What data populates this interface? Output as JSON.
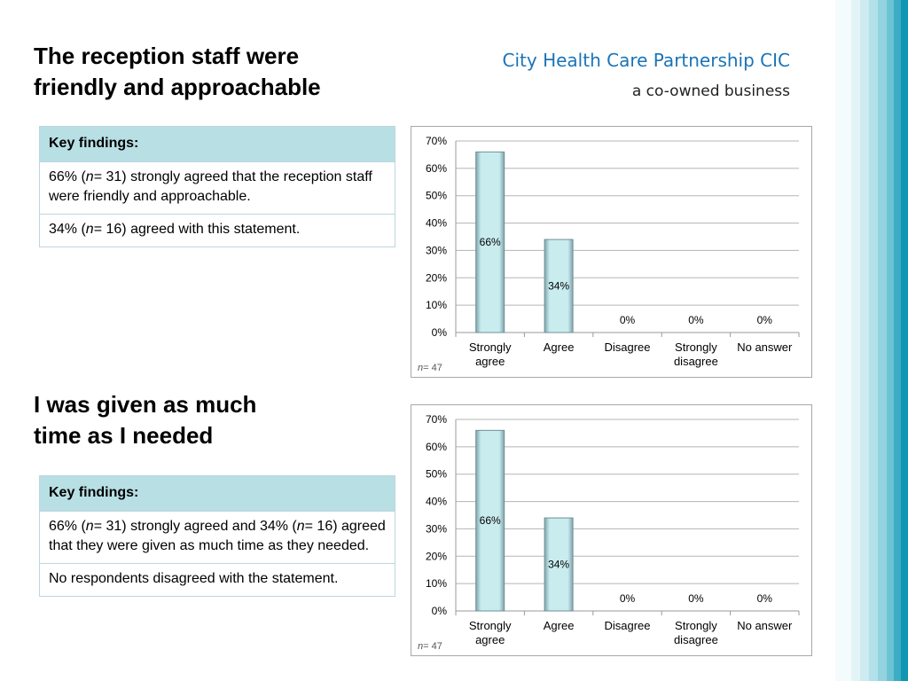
{
  "brand": {
    "name": "City Health Care Partnership CIC",
    "tagline": "a co-owned business"
  },
  "sections": [
    {
      "title_lines": [
        "The reception staff were",
        "friendly and approachable"
      ],
      "table": {
        "header": "Key findings:",
        "rows": [
          [
            "66% (",
            "n",
            "= 31) strongly agreed that the reception staff were friendly and approachable."
          ],
          [
            "34% (",
            "n",
            "= 16) agreed with this statement."
          ]
        ]
      },
      "n_note": {
        "var": "n",
        "text": "= 47"
      }
    },
    {
      "title_lines": [
        "I was given as much",
        "time as I needed"
      ],
      "table": {
        "header": "Key findings:",
        "rows": [
          [
            "66% (",
            "n",
            "= 31) strongly agreed and 34% (",
            "n",
            "= 16) agreed that they were given as much time as they needed."
          ],
          [
            "No respondents disagreed with the statement."
          ]
        ]
      },
      "n_note": {
        "var": "n",
        "text": "= 47"
      }
    }
  ],
  "chart_data": [
    {
      "type": "bar",
      "categories": [
        "Strongly agree",
        "Agree",
        "Disagree",
        "Strongly disagree",
        "No answer"
      ],
      "values": [
        66,
        34,
        0,
        0,
        0
      ],
      "data_labels": [
        "66%",
        "34%",
        "0%",
        "0%",
        "0%"
      ],
      "ylim": [
        0,
        70
      ],
      "yticks": [
        "0%",
        "10%",
        "20%",
        "30%",
        "40%",
        "50%",
        "60%",
        "70%"
      ],
      "grid": true,
      "bar_color": "#c9ecef"
    },
    {
      "type": "bar",
      "categories": [
        "Strongly agree",
        "Agree",
        "Disagree",
        "Strongly disagree",
        "No answer"
      ],
      "values": [
        66,
        34,
        0,
        0,
        0
      ],
      "data_labels": [
        "66%",
        "34%",
        "0%",
        "0%",
        "0%"
      ],
      "ylim": [
        0,
        70
      ],
      "yticks": [
        "0%",
        "10%",
        "20%",
        "30%",
        "40%",
        "50%",
        "60%",
        "70%"
      ],
      "grid": true,
      "bar_color": "#c9ecef"
    }
  ],
  "stripe_colors": [
    "#f4fbfc",
    "#e3f4f7",
    "#cdebf0",
    "#b3e1ea",
    "#93d3df",
    "#6cc3d3",
    "#3cadc4",
    "#0f96b2"
  ]
}
